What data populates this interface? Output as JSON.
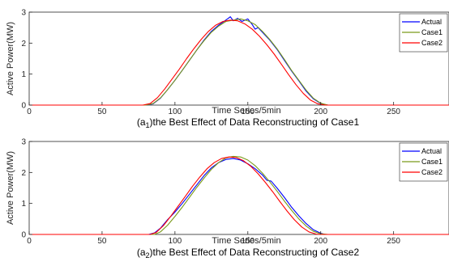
{
  "chart_data": [
    {
      "type": "line",
      "caption_prefix": "(a",
      "caption_sub": "1",
      "caption_suffix": ")the Best Effect of Data Reconstructing of Case1",
      "xlabel": "Time Series/5min",
      "ylabel": "Active Power(MW)",
      "xlim": [
        0,
        288
      ],
      "ylim": [
        0,
        3
      ],
      "xticks": [
        0,
        50,
        100,
        150,
        200,
        250
      ],
      "yticks": [
        0,
        1,
        2,
        3
      ],
      "grid": false,
      "legend_position": "top-right",
      "series": [
        {
          "name": "Actual",
          "color": "#0000ff",
          "x": [
            0,
            80,
            85,
            90,
            95,
            100,
            105,
            110,
            115,
            120,
            125,
            130,
            133,
            136,
            138,
            140,
            143,
            146,
            150,
            153,
            155,
            157,
            160,
            165,
            170,
            175,
            180,
            185,
            190,
            195,
            200,
            202,
            205,
            288
          ],
          "y": [
            0,
            0,
            0.04,
            0.22,
            0.5,
            0.8,
            1.12,
            1.45,
            1.78,
            2.1,
            2.38,
            2.58,
            2.68,
            2.78,
            2.85,
            2.72,
            2.8,
            2.7,
            2.78,
            2.6,
            2.45,
            2.5,
            2.35,
            2.1,
            1.8,
            1.45,
            1.1,
            0.78,
            0.45,
            0.2,
            0.05,
            0.02,
            0,
            0
          ]
        },
        {
          "name": "Case1",
          "color": "#7a9a1a",
          "x": [
            0,
            80,
            85,
            90,
            95,
            100,
            105,
            110,
            115,
            120,
            125,
            130,
            135,
            140,
            145,
            150,
            155,
            160,
            165,
            170,
            175,
            180,
            185,
            190,
            195,
            200,
            205,
            288
          ],
          "y": [
            0,
            0,
            0.05,
            0.23,
            0.5,
            0.8,
            1.12,
            1.45,
            1.78,
            2.08,
            2.35,
            2.55,
            2.7,
            2.74,
            2.78,
            2.72,
            2.6,
            2.38,
            2.12,
            1.82,
            1.48,
            1.12,
            0.8,
            0.48,
            0.22,
            0.06,
            0,
            0
          ]
        },
        {
          "name": "Case2",
          "color": "#ff0000",
          "x": [
            0,
            78,
            83,
            88,
            93,
            98,
            103,
            108,
            113,
            118,
            123,
            128,
            133,
            138,
            143,
            148,
            153,
            158,
            163,
            168,
            173,
            178,
            183,
            188,
            193,
            198,
            203,
            288
          ],
          "y": [
            0,
            0,
            0.05,
            0.24,
            0.52,
            0.84,
            1.16,
            1.5,
            1.82,
            2.12,
            2.38,
            2.58,
            2.7,
            2.74,
            2.72,
            2.62,
            2.45,
            2.22,
            1.95,
            1.65,
            1.32,
            0.98,
            0.66,
            0.38,
            0.16,
            0.04,
            0,
            0
          ]
        }
      ]
    },
    {
      "type": "line",
      "caption_prefix": "(a",
      "caption_sub": "2",
      "caption_suffix": ")the Best Effect of Data Reconstructing of Case2",
      "xlabel": "Time Series/5min",
      "ylabel": "Active Power(MW)",
      "xlim": [
        0,
        288
      ],
      "ylim": [
        0,
        3
      ],
      "xticks": [
        0,
        50,
        100,
        150,
        200,
        250
      ],
      "yticks": [
        0,
        1,
        2,
        3
      ],
      "grid": false,
      "legend_position": "top-right",
      "series": [
        {
          "name": "Actual",
          "color": "#0000ff",
          "x": [
            0,
            82,
            86,
            90,
            95,
            100,
            105,
            110,
            115,
            120,
            125,
            130,
            135,
            140,
            145,
            150,
            155,
            160,
            163,
            166,
            170,
            175,
            180,
            185,
            190,
            195,
            200,
            203,
            288
          ],
          "y": [
            0,
            0,
            0.05,
            0.2,
            0.48,
            0.72,
            1.0,
            1.3,
            1.6,
            1.9,
            2.15,
            2.32,
            2.42,
            2.45,
            2.4,
            2.28,
            2.12,
            1.92,
            1.75,
            1.72,
            1.5,
            1.2,
            0.88,
            0.6,
            0.35,
            0.15,
            0.04,
            0,
            0
          ]
        },
        {
          "name": "Case1",
          "color": "#7a9a1a",
          "x": [
            0,
            86,
            90,
            95,
            100,
            105,
            110,
            115,
            120,
            125,
            130,
            135,
            140,
            145,
            150,
            155,
            160,
            165,
            170,
            175,
            180,
            185,
            190,
            195,
            200,
            205,
            288
          ],
          "y": [
            0,
            0,
            0.08,
            0.3,
            0.58,
            0.88,
            1.2,
            1.52,
            1.82,
            2.1,
            2.32,
            2.47,
            2.52,
            2.5,
            2.4,
            2.22,
            1.98,
            1.7,
            1.4,
            1.08,
            0.78,
            0.5,
            0.27,
            0.1,
            0.02,
            0,
            0
          ]
        },
        {
          "name": "Case2",
          "color": "#ff0000",
          "x": [
            0,
            83,
            87,
            92,
            97,
            102,
            107,
            112,
            117,
            122,
            127,
            132,
            137,
            142,
            147,
            152,
            157,
            162,
            167,
            172,
            177,
            182,
            187,
            192,
            197,
            202,
            288
          ],
          "y": [
            0,
            0,
            0.06,
            0.28,
            0.58,
            0.9,
            1.22,
            1.55,
            1.85,
            2.12,
            2.32,
            2.45,
            2.5,
            2.48,
            2.38,
            2.2,
            1.96,
            1.68,
            1.38,
            1.06,
            0.75,
            0.47,
            0.24,
            0.08,
            0.01,
            0,
            0
          ]
        }
      ]
    }
  ]
}
